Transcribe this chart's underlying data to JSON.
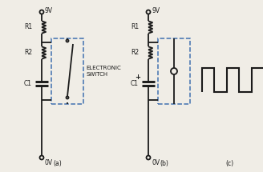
{
  "bg_color": "#f0ede6",
  "line_color": "#1a1a1a",
  "line_width": 1.3,
  "dashed_color": "#4070b0",
  "title_a": "(a)",
  "title_b": "(b)",
  "title_c": "(c)",
  "label_9V": "9V",
  "label_0V": "0V",
  "label_R1": "R1",
  "label_R2": "R2",
  "label_C1": "C1",
  "label_elec": "ELECTRONIC",
  "label_switch": "SWITCH",
  "font_size": 5.5,
  "sq_wave_color": "#1a1a1a"
}
